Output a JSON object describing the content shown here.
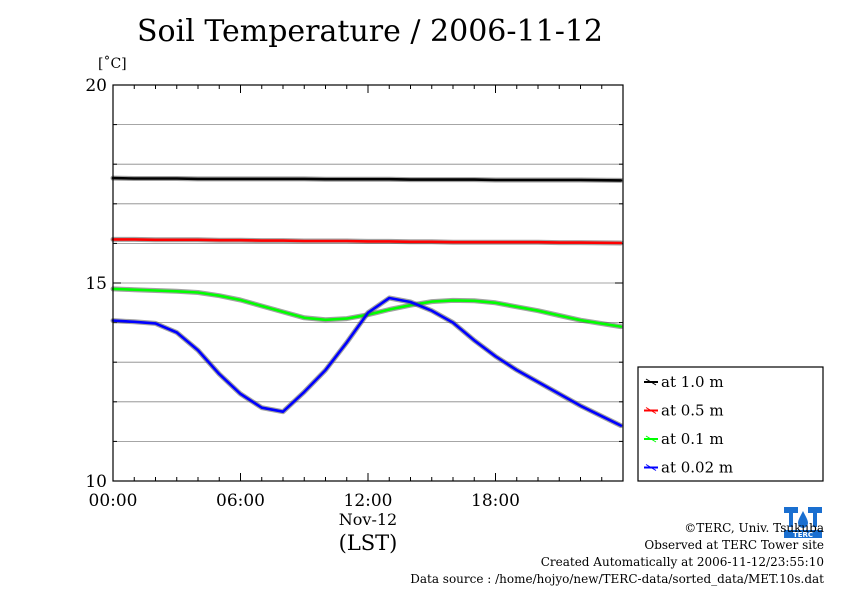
{
  "header": {
    "title": "Soil Temperature / 2006-11-12",
    "unit": "[˚C]"
  },
  "chart_data": {
    "type": "line",
    "title": "Soil Temperature / 2006-11-12",
    "ylabel": "[˚C]",
    "xlabel": "(LST)",
    "x_date_label": "Nov-12",
    "xlim": [
      0,
      24
    ],
    "ylim": [
      10,
      20
    ],
    "x_ticks": [
      "00:00",
      "06:00",
      "12:00",
      "18:00"
    ],
    "y_ticks": [
      "10",
      "15",
      "20"
    ],
    "grid": true,
    "legend_position": "right",
    "x": [
      0,
      1,
      2,
      3,
      4,
      5,
      6,
      7,
      8,
      9,
      10,
      11,
      12,
      13,
      14,
      15,
      16,
      17,
      18,
      19,
      20,
      21,
      22,
      23.9
    ],
    "series": [
      {
        "name": "at 1.0 m",
        "color": "#000000",
        "values": [
          17.65,
          17.64,
          17.64,
          17.64,
          17.63,
          17.63,
          17.63,
          17.63,
          17.63,
          17.63,
          17.62,
          17.62,
          17.62,
          17.62,
          17.61,
          17.61,
          17.61,
          17.61,
          17.6,
          17.6,
          17.6,
          17.6,
          17.6,
          17.59
        ]
      },
      {
        "name": "at 0.5 m",
        "color": "#ff0000",
        "values": [
          16.1,
          16.1,
          16.09,
          16.09,
          16.09,
          16.08,
          16.08,
          16.07,
          16.07,
          16.06,
          16.06,
          16.06,
          16.05,
          16.05,
          16.04,
          16.04,
          16.03,
          16.03,
          16.03,
          16.03,
          16.03,
          16.02,
          16.02,
          16.01
        ]
      },
      {
        "name": "at 0.1 m",
        "color": "#00ff00",
        "values": [
          14.85,
          14.83,
          14.81,
          14.79,
          14.76,
          14.68,
          14.57,
          14.42,
          14.27,
          14.12,
          14.07,
          14.1,
          14.2,
          14.33,
          14.44,
          14.53,
          14.56,
          14.55,
          14.5,
          14.4,
          14.3,
          14.18,
          14.06,
          13.9
        ]
      },
      {
        "name": "at 0.02 m",
        "color": "#0000ff",
        "values": [
          14.05,
          14.02,
          13.98,
          13.75,
          13.3,
          12.7,
          12.2,
          11.85,
          11.75,
          12.25,
          12.8,
          13.5,
          14.25,
          14.62,
          14.52,
          14.3,
          14.0,
          13.55,
          13.15,
          12.8,
          12.5,
          12.2,
          11.9,
          11.4
        ]
      }
    ]
  },
  "credits": {
    "copyright": "©TERC, Univ. Tsukuba",
    "observed": "Observed at TERC Tower site",
    "created": "Created Automatically at 2006-11-12/23:55:10",
    "source": "Data source : /home/hojyo/new/TERC-data/sorted_data/MET.10s.dat"
  },
  "logo": {
    "text": "TERC",
    "color": "#1a6fd0"
  }
}
